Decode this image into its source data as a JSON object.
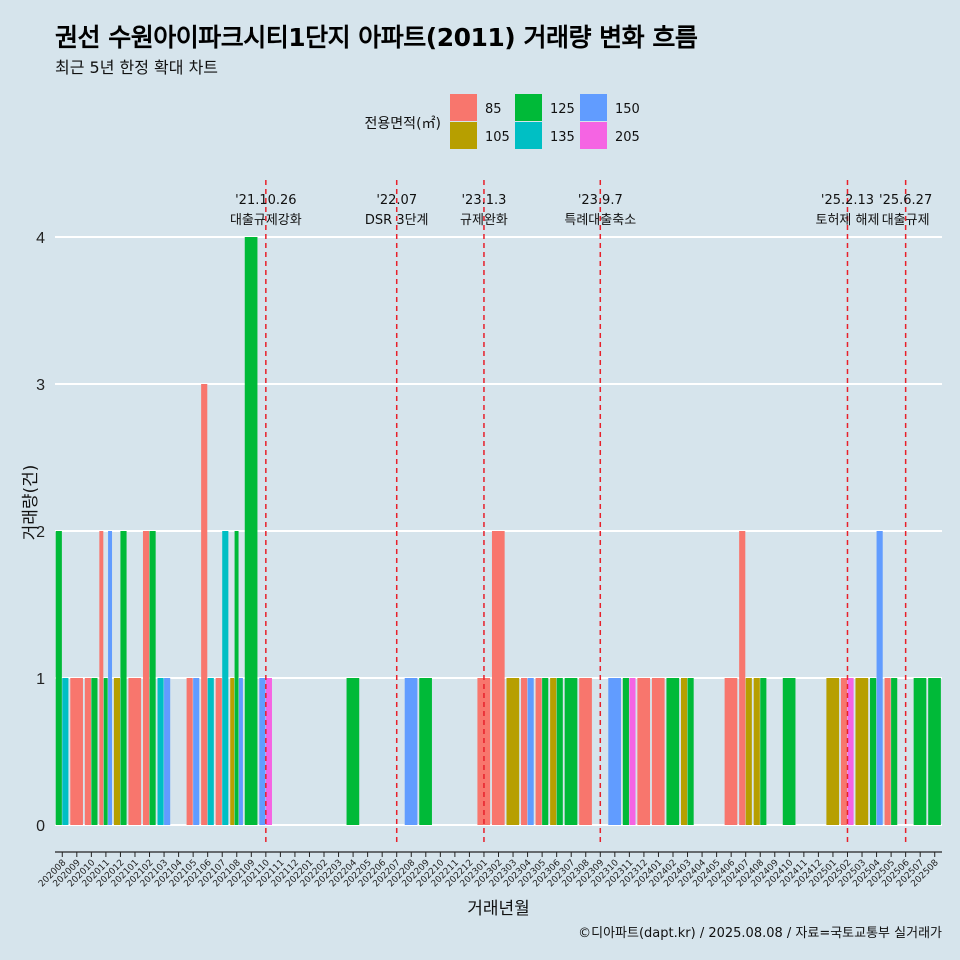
{
  "title": "권선 수원아이파크시티1단지 아파트(2011) 거래량 변화 흐름",
  "subtitle": "최근 5년 한정 확대 차트",
  "credit": "©디아파트(dapt.kr) / 2025.08.08 / 자료=국토교통부 실거래가",
  "colors": {
    "background": "#d6e4ec",
    "grid": "#ffffff",
    "event_line": "#e8202a",
    "85": "#f8766d",
    "105": "#b79f00",
    "125": "#00ba38",
    "135": "#00bfc4",
    "150": "#619cff",
    "205": "#f564e3"
  },
  "chart_data": {
    "type": "bar",
    "stacking": "dodge",
    "xlabel": "거래년월",
    "ylabel": "거래량(건)",
    "ylim": [
      0,
      4
    ],
    "yticks": [
      0,
      1,
      2,
      3,
      4
    ],
    "grid": true,
    "legend": {
      "title": "전용면적(㎡)",
      "position": "top",
      "entries": [
        "85",
        "105",
        "125",
        "135",
        "150",
        "205"
      ]
    },
    "categories": [
      "202008",
      "202009",
      "202010",
      "202011",
      "202012",
      "202101",
      "202102",
      "202103",
      "202104",
      "202105",
      "202106",
      "202107",
      "202108",
      "202109",
      "202110",
      "202111",
      "202112",
      "202201",
      "202202",
      "202203",
      "202204",
      "202205",
      "202206",
      "202207",
      "202208",
      "202209",
      "202210",
      "202211",
      "202212",
      "202301",
      "202302",
      "202303",
      "202304",
      "202305",
      "202306",
      "202307",
      "202308",
      "202309",
      "202310",
      "202311",
      "202312",
      "202401",
      "202402",
      "202403",
      "202404",
      "202405",
      "202406",
      "202407",
      "202408",
      "202409",
      "202410",
      "202411",
      "202412",
      "202501",
      "202502",
      "202503",
      "202504",
      "202505",
      "202506",
      "202507",
      "202508"
    ],
    "bars": [
      {
        "month": "202008",
        "values": {
          "125": 2,
          "135": 1
        }
      },
      {
        "month": "202009",
        "values": {
          "85": 1
        }
      },
      {
        "month": "202010",
        "values": {
          "85": 1,
          "125": 1
        }
      },
      {
        "month": "202011",
        "values": {
          "85": 2,
          "125": 1,
          "150": 2
        }
      },
      {
        "month": "202012",
        "values": {
          "105": 1,
          "125": 2
        }
      },
      {
        "month": "202101",
        "values": {
          "85": 1
        }
      },
      {
        "month": "202102",
        "values": {
          "85": 2,
          "125": 2
        }
      },
      {
        "month": "202103",
        "values": {
          "135": 1,
          "150": 1
        }
      },
      {
        "month": "202104",
        "values": {}
      },
      {
        "month": "202105",
        "values": {
          "85": 1,
          "150": 1
        }
      },
      {
        "month": "202106",
        "values": {
          "85": 3,
          "135": 1
        }
      },
      {
        "month": "202107",
        "values": {
          "85": 1,
          "135": 2
        }
      },
      {
        "month": "202108",
        "values": {
          "105": 1,
          "125": 2,
          "150": 1
        }
      },
      {
        "month": "202109",
        "values": {
          "125": 4
        }
      },
      {
        "month": "202110",
        "values": {
          "150": 1,
          "205": 1
        }
      },
      {
        "month": "202204",
        "values": {
          "125": 1
        }
      },
      {
        "month": "202208",
        "values": {
          "150": 1
        }
      },
      {
        "month": "202209",
        "values": {
          "125": 1
        }
      },
      {
        "month": "202301",
        "values": {
          "85": 1
        }
      },
      {
        "month": "202302",
        "values": {
          "85": 2
        }
      },
      {
        "month": "202303",
        "values": {
          "105": 1
        }
      },
      {
        "month": "202304",
        "values": {
          "85": 1,
          "150": 1
        }
      },
      {
        "month": "202305",
        "values": {
          "85": 1,
          "125": 1
        }
      },
      {
        "month": "202306",
        "values": {
          "105": 1,
          "125": 1
        }
      },
      {
        "month": "202307",
        "values": {
          "125": 1
        }
      },
      {
        "month": "202308",
        "values": {
          "85": 1
        }
      },
      {
        "month": "202310",
        "values": {
          "150": 1
        }
      },
      {
        "month": "202311",
        "values": {
          "125": 1,
          "205": 1
        }
      },
      {
        "month": "202312",
        "values": {
          "85": 1
        }
      },
      {
        "month": "202401",
        "values": {
          "85": 1
        }
      },
      {
        "month": "202402",
        "values": {
          "125": 1
        }
      },
      {
        "month": "202403",
        "values": {
          "105": 1,
          "125": 1
        }
      },
      {
        "month": "202406",
        "values": {
          "85": 1
        }
      },
      {
        "month": "202407",
        "values": {
          "85": 2,
          "105": 1
        }
      },
      {
        "month": "202408",
        "values": {
          "105": 1,
          "125": 1
        }
      },
      {
        "month": "202410",
        "values": {
          "125": 1
        }
      },
      {
        "month": "202501",
        "values": {
          "105": 1
        }
      },
      {
        "month": "202502",
        "values": {
          "85": 1,
          "205": 1
        }
      },
      {
        "month": "202503",
        "values": {
          "105": 1
        }
      },
      {
        "month": "202504",
        "values": {
          "125": 1,
          "150": 2
        }
      },
      {
        "month": "202505",
        "values": {
          "85": 1,
          "125": 1
        }
      },
      {
        "month": "202507",
        "values": {
          "125": 1
        }
      },
      {
        "month": "202508",
        "values": {
          "125": 1
        }
      }
    ],
    "annotations": [
      {
        "month": "202110",
        "date": "'21.10.26",
        "label": "대출규제강화"
      },
      {
        "month": "202207",
        "date": "'22.07",
        "label": "DSR 3단계"
      },
      {
        "month": "202301",
        "date": "'23.1.3",
        "label": "규제완화"
      },
      {
        "month": "202309",
        "date": "'23.9.7",
        "label": "특례대출축소"
      },
      {
        "month": "202502",
        "date": "'25.2.13",
        "label": "토허제 해제"
      },
      {
        "month": "202506",
        "date": "'25.6.27",
        "label": "대출규제"
      }
    ]
  }
}
